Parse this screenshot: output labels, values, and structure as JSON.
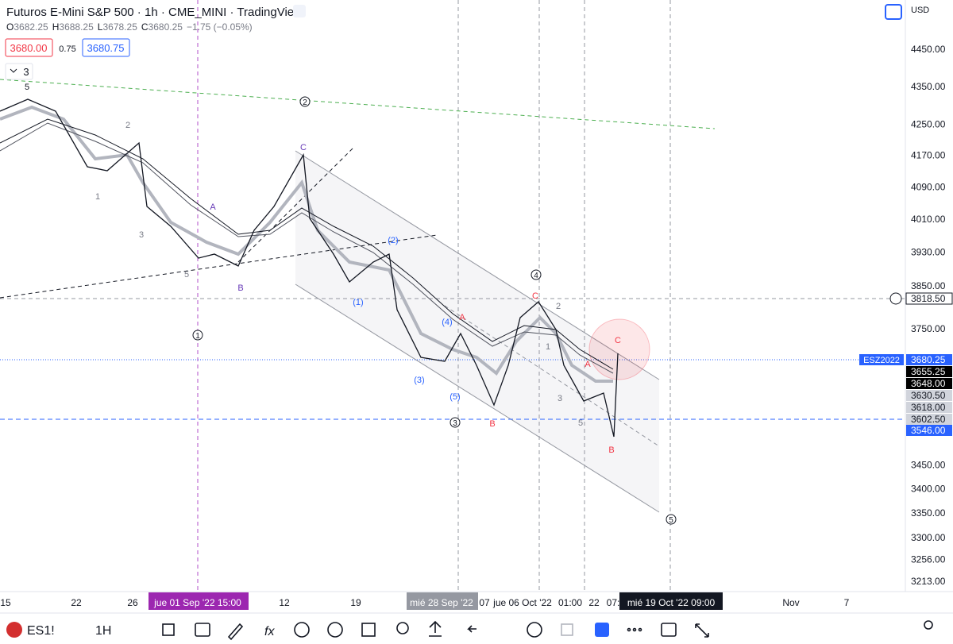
{
  "header": {
    "symbol": "Futuros E-Mini S&P 500",
    "interval": "1h",
    "exchange": "CME_MINI",
    "source": "TradingView",
    "ohlc": [
      {
        "key": "O",
        "value": "3682.25"
      },
      {
        "key": "H",
        "value": "3688.25"
      },
      {
        "key": "L",
        "value": "3678.25"
      },
      {
        "key": "C",
        "value": "3680.25"
      }
    ],
    "change": "−1.75 (−0.05%)",
    "sell_price": "3680.00",
    "spread": "0.75",
    "buy_price": "3680.75",
    "indicator_count": "3"
  },
  "currency": "USD",
  "price_axis": {
    "ticks": [
      {
        "value": 4450,
        "label": "4450.00"
      },
      {
        "value": 4350,
        "label": "4350.00"
      },
      {
        "value": 4250,
        "label": "4250.00"
      },
      {
        "value": 4170,
        "label": "4170.00"
      },
      {
        "value": 4090,
        "label": "4090.00"
      },
      {
        "value": 4010,
        "label": "4010.00"
      },
      {
        "value": 3930,
        "label": "3930.00"
      },
      {
        "value": 3850,
        "label": "3850.00"
      },
      {
        "value": 3750,
        "label": "3750.00"
      },
      {
        "value": 3450,
        "label": "3450.00"
      },
      {
        "value": 3400,
        "label": "3400.00"
      },
      {
        "value": 3350,
        "label": "3350.00"
      },
      {
        "value": 3300,
        "label": "3300.00"
      },
      {
        "value": 3256,
        "label": "3256.00"
      },
      {
        "value": 3213,
        "label": "3213.00"
      }
    ],
    "markers": [
      {
        "label": "3818.50",
        "bg": "#ffffff",
        "fg": "#131722"
      },
      {
        "label": "3680.25",
        "bg": "#2962ff",
        "fg": "#ffffff"
      },
      {
        "label": "3655.25",
        "bg": "#000000",
        "fg": "#ffffff"
      },
      {
        "label": "3648.00",
        "bg": "#000000",
        "fg": "#ffffff"
      },
      {
        "label": "3630.50",
        "bg": "#d1d4dc",
        "fg": "#131722"
      },
      {
        "label": "3618.00",
        "bg": "#d1d4dc",
        "fg": "#131722"
      },
      {
        "label": "3602.50",
        "bg": "#d1d4dc",
        "fg": "#131722"
      },
      {
        "label": "3546.00",
        "bg": "#2962ff",
        "fg": "#ffffff"
      }
    ],
    "badge": "ESZ2022"
  },
  "time_axis": [
    "15",
    "22",
    "26",
    "jue 01 Sep '22   15:00",
    "12",
    "19",
    "mié 28 Sep '22",
    "07",
    "jue 06 Oct '22",
    "01:00",
    "22",
    "07:",
    "mié 19 Oct '22   09:00",
    "Nov",
    "7"
  ],
  "wave_labels": [
    {
      "text": "5",
      "color": "#131722"
    },
    {
      "text": "2",
      "color": "#787b86"
    },
    {
      "text": "1",
      "color": "#787b86"
    },
    {
      "text": "3",
      "color": "#787b86"
    },
    {
      "text": "5",
      "color": "#787b86"
    },
    {
      "text": "A",
      "color": "#673ab7"
    },
    {
      "text": "B",
      "color": "#673ab7"
    },
    {
      "text": "C",
      "color": "#673ab7"
    },
    {
      "text": "1",
      "color": "#131722",
      "circled": true
    },
    {
      "text": "2",
      "color": "#131722",
      "circled": true
    },
    {
      "text": "(2)",
      "color": "#2962ff"
    },
    {
      "text": "(1)",
      "color": "#2962ff"
    },
    {
      "text": "(4)",
      "color": "#2962ff"
    },
    {
      "text": "A",
      "color": "#f23645"
    },
    {
      "text": "(3)",
      "color": "#2962ff"
    },
    {
      "text": "(5)",
      "color": "#2962ff"
    },
    {
      "text": "3",
      "color": "#131722",
      "circled": true
    },
    {
      "text": "B",
      "color": "#f23645"
    },
    {
      "text": "4",
      "color": "#131722",
      "circled": true
    },
    {
      "text": "C",
      "color": "#f23645"
    },
    {
      "text": "2",
      "color": "#787b86"
    },
    {
      "text": "1",
      "color": "#787b86"
    },
    {
      "text": "A",
      "color": "#f23645"
    },
    {
      "text": "3",
      "color": "#787b86"
    },
    {
      "text": "5",
      "color": "#787b86"
    },
    {
      "text": "C",
      "color": "#f23645"
    },
    {
      "text": "B",
      "color": "#f23645"
    },
    {
      "text": "5",
      "color": "#131722",
      "circled": true
    }
  ],
  "toolbar": {
    "symbol": "ES1!",
    "interval": "1H"
  }
}
